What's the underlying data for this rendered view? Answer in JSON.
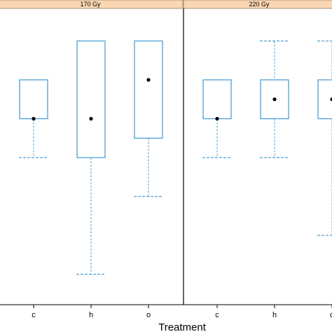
{
  "chart_data": {
    "type": "box",
    "xlabel": "Treatment",
    "ylabel": "",
    "ylim": [
      0,
      10
    ],
    "colors": {
      "strip_fill": "#fbd6b2",
      "box_stroke": "#4f9fd6",
      "whisker_stroke": "#4f9fd6",
      "median_dot": "#000000",
      "panel_border": "#000000"
    },
    "panels": [
      {
        "strip": "170 Gy",
        "categories": [
          "c",
          "h",
          "o"
        ],
        "boxes": [
          {
            "category": "c",
            "whisker_low": 5.0,
            "q1": 6.5,
            "median": 6.5,
            "q3": 8.0,
            "whisker_high": 8.0
          },
          {
            "category": "h",
            "whisker_low": 0.5,
            "q1": 5.0,
            "median": 6.5,
            "q3": 9.5,
            "whisker_high": 9.5
          },
          {
            "category": "o",
            "whisker_low": 3.5,
            "q1": 5.75,
            "median": 8.0,
            "q3": 9.5,
            "whisker_high": 9.5
          }
        ]
      },
      {
        "strip": "220 Gy",
        "categories": [
          "c",
          "h",
          "o"
        ],
        "boxes": [
          {
            "category": "c",
            "whisker_low": 5.0,
            "q1": 6.5,
            "median": 6.5,
            "q3": 8.0,
            "whisker_high": 8.0
          },
          {
            "category": "h",
            "whisker_low": 5.0,
            "q1": 6.5,
            "median": 7.25,
            "q3": 8.0,
            "whisker_high": 9.5
          },
          {
            "category": "o",
            "whisker_low": 2.0,
            "q1": 6.5,
            "median": 7.25,
            "q3": 8.0,
            "whisker_high": 9.5
          }
        ]
      }
    ]
  }
}
